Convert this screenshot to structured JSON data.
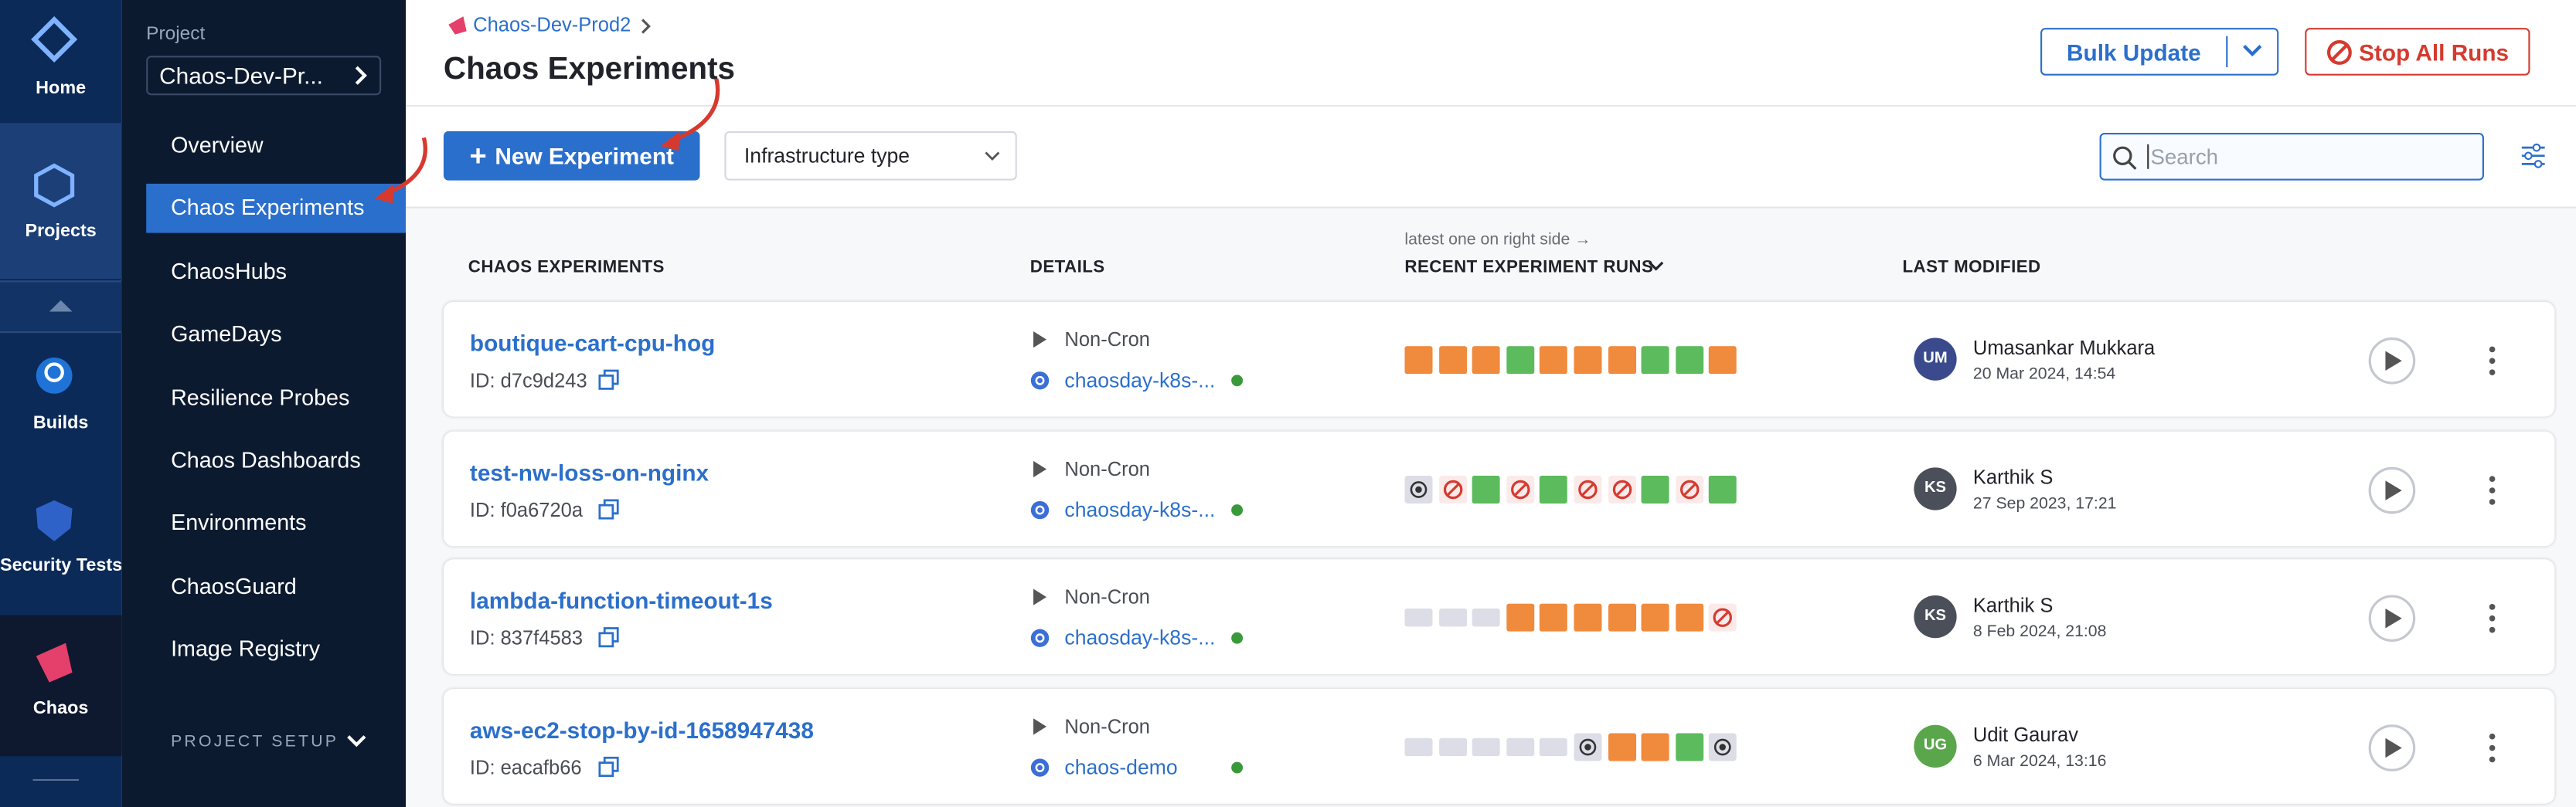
{
  "nav": [
    "Home",
    "Projects",
    "Builds",
    "Security Tests",
    "Chaos"
  ],
  "project": {
    "label": "Project",
    "name": "Chaos-Dev-Pr..."
  },
  "menu": [
    "Overview",
    "Chaos Experiments",
    "ChaosHubs",
    "GameDays",
    "Resilience Probes",
    "Chaos Dashboards",
    "Environments",
    "ChaosGuard",
    "Image Registry"
  ],
  "menu_footer": "PROJECT SETUP",
  "header": {
    "breadcrumb": "Chaos-Dev-Prod2",
    "title": "Chaos Experiments",
    "bulk_update": "Bulk Update",
    "stop_all_runs": "Stop All Runs"
  },
  "toolbar": {
    "new_experiment": "New Experiment",
    "infrastructure_type": "Infrastructure type",
    "search_placeholder": "Search"
  },
  "table": {
    "headers": [
      "CHAOS EXPERIMENTS",
      "DETAILS",
      "RECENT EXPERIMENT RUNS",
      "LAST MODIFIED"
    ],
    "runs_note": "latest one on right side →",
    "rows": [
      {
        "name": "boutique-cart-cpu-hog",
        "id": "ID: d7c9d243",
        "schedule": "Non-Cron",
        "infra": "chaosday-k8s-...",
        "initials": "UM",
        "user": "Umasankar Mukkara",
        "modified": "20 Mar 2024, 14:54"
      },
      {
        "name": "test-nw-loss-on-nginx",
        "id": "ID: f0a6720a",
        "schedule": "Non-Cron",
        "infra": "chaosday-k8s-...",
        "initials": "KS",
        "user": "Karthik S",
        "modified": "27 Sep 2023, 17:21"
      },
      {
        "name": "lambda-function-timeout-1s",
        "id": "ID: 837f4583",
        "schedule": "Non-Cron",
        "infra": "chaosday-k8s-...",
        "initials": "KS",
        "user": "Karthik S",
        "modified": "8 Feb 2024, 21:08"
      },
      {
        "name": "aws-ec2-stop-by-id-1658947438",
        "id": "ID: eacafb66",
        "schedule": "Non-Cron",
        "infra": "chaos-demo",
        "initials": "UG",
        "user": "Udit Gaurav",
        "modified": "6 Mar 2024, 13:16"
      }
    ]
  }
}
